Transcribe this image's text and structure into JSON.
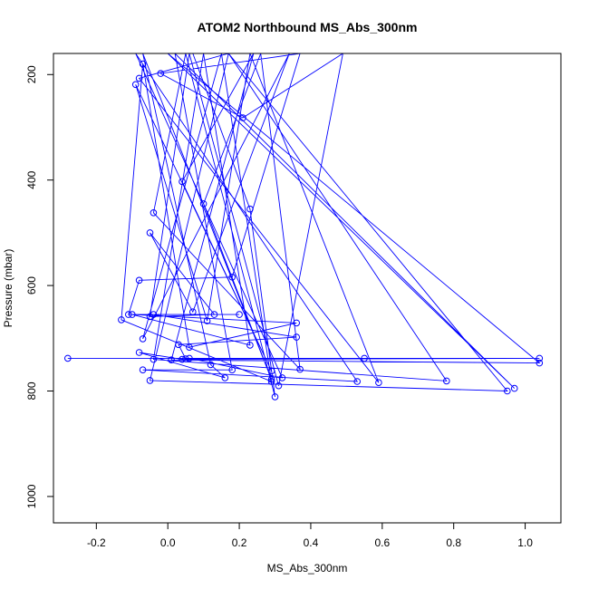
{
  "chart_data": {
    "type": "line",
    "title": "ATOM2 Northbound MS_Abs_300nm",
    "xlabel": "MS_Abs_300nm",
    "ylabel": "Pressure (mbar)",
    "xlim": [
      -0.32,
      1.1
    ],
    "ylim": [
      1050,
      160
    ],
    "y_reversed": true,
    "x_ticks": [
      -0.2,
      0.0,
      0.2,
      0.4,
      0.6,
      0.8,
      1.0
    ],
    "x_tick_labels": [
      "-0.2",
      "0.0",
      "0.2",
      "0.4",
      "0.6",
      "0.8",
      "1.0"
    ],
    "y_ticks": [
      200,
      400,
      600,
      800,
      1000
    ],
    "y_tick_labels": [
      "200",
      "400",
      "600",
      "800",
      "1000"
    ],
    "grid": false,
    "series": [
      {
        "color": "#0000ff",
        "marker": "open-circle",
        "points": [
          {
            "x": -0.28,
            "y": 738
          },
          {
            "x": 0.55,
            "y": 738
          },
          {
            "x": 0.05,
            "y": 739
          },
          {
            "x": 0.03,
            "y": 712
          },
          {
            "x": 0.36,
            "y": 698
          },
          {
            "x": -0.04,
            "y": 655
          },
          {
            "x": 0.2,
            "y": 655
          },
          {
            "x": -0.11,
            "y": 655
          },
          {
            "x": -0.08,
            "y": 590
          },
          {
            "x": 0.18,
            "y": 584
          },
          {
            "x": 0.37,
            "y": 160
          },
          {
            "x": -0.02,
            "y": 198
          },
          {
            "x": 0.21,
            "y": 282
          },
          {
            "x": 0.49,
            "y": 160
          },
          {
            "x": 0.31,
            "y": 790
          },
          {
            "x": 0.06,
            "y": 160
          },
          {
            "x": -0.05,
            "y": 659
          },
          {
            "x": 0.13,
            "y": 655
          },
          {
            "x": -0.05,
            "y": 500
          },
          {
            "x": 0.07,
            "y": 650
          },
          {
            "x": 0.34,
            "y": 160
          },
          {
            "x": -0.07,
            "y": 701
          },
          {
            "x": 0.15,
            "y": 160
          },
          {
            "x": 0.29,
            "y": 782
          },
          {
            "x": -0.13,
            "y": 665
          },
          {
            "x": -0.07,
            "y": 180
          },
          {
            "x": 0.06,
            "y": 717
          },
          {
            "x": 0.36,
            "y": 671
          },
          {
            "x": -0.1,
            "y": 655
          },
          {
            "x": 0.23,
            "y": 713
          },
          {
            "x": 0.1,
            "y": 160
          },
          {
            "x": -0.04,
            "y": 740
          },
          {
            "x": 0.78,
            "y": 781
          },
          {
            "x": 0.17,
            "y": 160
          },
          {
            "x": -0.05,
            "y": 780
          },
          {
            "x": 0.95,
            "y": 800
          },
          {
            "x": 0.17,
            "y": 160
          },
          {
            "x": -0.08,
            "y": 207
          },
          {
            "x": 0.59,
            "y": 784
          },
          {
            "x": 0.23,
            "y": 160
          },
          {
            "x": 0.11,
            "y": 667
          },
          {
            "x": -0.09,
            "y": 219
          },
          {
            "x": 0.29,
            "y": 762
          },
          {
            "x": 0.04,
            "y": 403
          },
          {
            "x": 0.24,
            "y": 160
          },
          {
            "x": 0.01,
            "y": 741
          },
          {
            "x": 1.04,
            "y": 747
          },
          {
            "x": 0.0,
            "y": 160
          },
          {
            "x": 0.97,
            "y": 795
          },
          {
            "x": 0.02,
            "y": 160
          },
          {
            "x": 0.18,
            "y": 760
          },
          {
            "x": -0.07,
            "y": 760
          },
          {
            "x": 0.53,
            "y": 782
          },
          {
            "x": -0.09,
            "y": 160
          },
          {
            "x": 0.32,
            "y": 775
          },
          {
            "x": 0.06,
            "y": 738
          },
          {
            "x": 1.04,
            "y": 738
          },
          {
            "x": 0.04,
            "y": 740
          },
          {
            "x": -0.08,
            "y": 727
          },
          {
            "x": 0.16,
            "y": 775
          },
          {
            "x": 0.12,
            "y": 750
          },
          {
            "x": -0.07,
            "y": 160
          },
          {
            "x": 0.29,
            "y": 778
          },
          {
            "x": 0.1,
            "y": 445
          },
          {
            "x": 0.26,
            "y": 160
          },
          {
            "x": 0.37,
            "y": 759
          },
          {
            "x": -0.04,
            "y": 462
          },
          {
            "x": 0.05,
            "y": 160
          },
          {
            "x": 0.3,
            "y": 811
          },
          {
            "x": 0.23,
            "y": 455
          },
          {
            "x": 0.07,
            "y": 160
          }
        ]
      }
    ]
  }
}
